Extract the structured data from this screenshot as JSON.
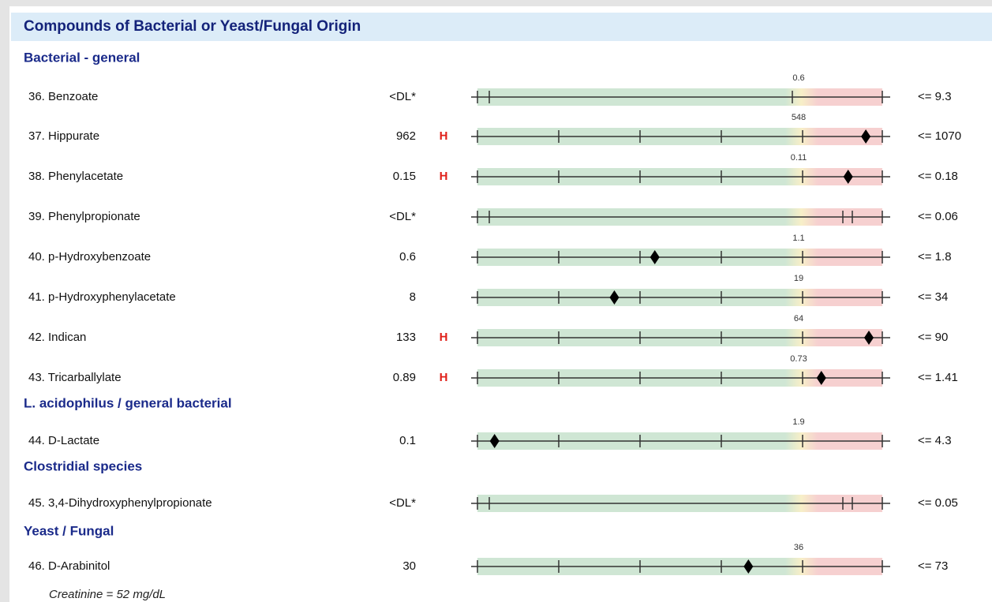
{
  "header": {
    "title": "Compounds of Bacterial or Yeast/Fungal Origin"
  },
  "sections": [
    {
      "title": "Bacterial - general",
      "rows": [
        {
          "label": "36. Benzoate",
          "result": "<DL*",
          "marker": 0.6,
          "limit": {
            "value": 9.3,
            "label": "<= 9.3"
          }
        },
        {
          "label": "37. Hippurate",
          "result": 962,
          "flag": "H",
          "marker": 548,
          "limit": {
            "value": 1070,
            "label": "<= 1070"
          }
        },
        {
          "label": "38. Phenylacetate",
          "result": 0.15,
          "flag": "H",
          "marker": 0.11,
          "limit": {
            "value": 0.18,
            "label": "<= 0.18"
          }
        },
        {
          "label": "39. Phenylpropionate",
          "result": "<DL*",
          "limit": {
            "value": 0.06,
            "label": "<= 0.06"
          }
        },
        {
          "label": "40. p-Hydroxybenzoate",
          "result": 0.6,
          "marker": 1.1,
          "limit": {
            "value": 1.8,
            "label": "<= 1.8"
          }
        },
        {
          "label": "41. p-Hydroxyphenylacetate",
          "result": 8,
          "marker": 19,
          "limit": {
            "value": 34,
            "label": "<= 34"
          }
        },
        {
          "label": "42. Indican",
          "result": 133,
          "flag": "H",
          "marker": 64,
          "limit": {
            "value": 90,
            "label": "<= 90"
          }
        },
        {
          "label": "43. Tricarballylate",
          "result": 0.89,
          "flag": "H",
          "marker": 0.73,
          "limit": {
            "value": 1.41,
            "label": "<= 1.41"
          }
        }
      ]
    },
    {
      "title": "L. acidophilus / general bacterial",
      "rows": [
        {
          "label": "44. D-Lactate",
          "result": 0.1,
          "marker": 1.9,
          "limit": {
            "value": 4.3,
            "label": "<= 4.3"
          }
        }
      ]
    },
    {
      "title": "Clostridial species",
      "rows": [
        {
          "label": "45. 3,4-Dihydroxyphenylpropionate",
          "result": "<DL*",
          "limit": {
            "value": 0.05,
            "label": "<= 0.05"
          }
        }
      ]
    },
    {
      "title": "Yeast / Fungal",
      "rows": [
        {
          "label": "46. D-Arabinitol",
          "result": 30,
          "marker": 36,
          "limit": {
            "value": 73,
            "label": "<= 73"
          }
        }
      ]
    }
  ],
  "footer": "Creatinine = 52 mg/dL"
}
